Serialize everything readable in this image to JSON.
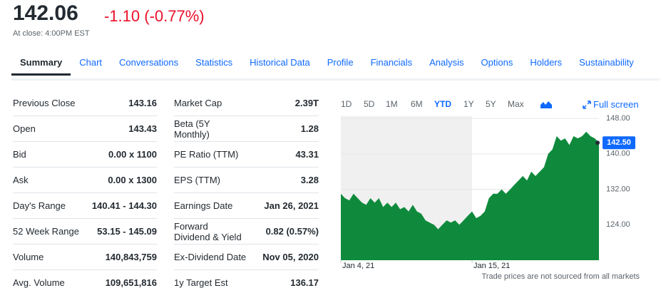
{
  "header": {
    "price": "142.06",
    "change": "-1.10 (-0.77%)",
    "note": "At close: 4:00PM EST"
  },
  "tabs": [
    "Summary",
    "Chart",
    "Conversations",
    "Statistics",
    "Historical Data",
    "Profile",
    "Financials",
    "Analysis",
    "Options",
    "Holders",
    "Sustainability"
  ],
  "active_tab": 0,
  "summary": {
    "left": [
      [
        "Previous Close",
        "143.16"
      ],
      [
        "Open",
        "143.43"
      ],
      [
        "Bid",
        "0.00 x 1100"
      ],
      [
        "Ask",
        "0.00 x 1300"
      ],
      [
        "Day's Range",
        "140.41 - 144.30"
      ],
      [
        "52 Week Range",
        "53.15 - 145.09"
      ],
      [
        "Volume",
        "140,843,759"
      ],
      [
        "Avg. Volume",
        "109,651,816"
      ]
    ],
    "right": [
      [
        "Market Cap",
        "2.39T"
      ],
      [
        [
          "Beta (5Y",
          "Monthly)"
        ],
        "1.28"
      ],
      [
        "PE Ratio (TTM)",
        "43.31"
      ],
      [
        "EPS (TTM)",
        "3.28"
      ],
      [
        "Earnings Date",
        "Jan 26, 2021"
      ],
      [
        [
          "Forward",
          "Dividend & Yield"
        ],
        "0.82 (0.57%)"
      ],
      [
        "Ex-Dividend Date",
        "Nov 05, 2020"
      ],
      [
        "1y Target Est",
        "136.17"
      ]
    ]
  },
  "range_buttons": [
    "1D",
    "5D",
    "1M",
    "6M",
    "YTD",
    "1Y",
    "5Y",
    "Max"
  ],
  "active_range": 4,
  "full_screen": "Full screen",
  "chart_data": {
    "type": "area",
    "color": "#0f8a3c",
    "values": [
      131,
      130,
      129.5,
      131,
      130,
      129,
      128.5,
      130,
      129,
      130,
      128,
      129,
      128,
      129,
      127.5,
      128,
      127,
      128.5,
      127,
      126.5,
      125,
      124.5,
      124,
      123,
      124,
      125,
      124.5,
      125,
      124,
      125,
      126,
      127,
      125.5,
      126,
      127,
      130,
      131,
      131,
      132,
      131,
      132,
      133,
      134,
      135,
      134,
      136,
      135,
      136,
      137,
      140,
      141,
      144,
      143,
      143.5,
      142,
      144,
      143.5,
      144,
      145,
      144,
      143.5,
      142.5
    ],
    "ylim": [
      116,
      148.5
    ],
    "yticks": [
      {
        "value": 148,
        "label": "148.00"
      },
      {
        "value": 140,
        "label": "140.00"
      },
      {
        "value": 132,
        "label": "132.00"
      },
      {
        "value": 124,
        "label": "124.00"
      }
    ],
    "xticks": [
      {
        "value": 0,
        "label": "Jan 4, 21"
      },
      {
        "value": 31,
        "label": "Jan 15, 21"
      }
    ],
    "current": {
      "value": 142.5,
      "label": "142.50"
    },
    "note": "Trade prices are not sourced from all markets"
  }
}
